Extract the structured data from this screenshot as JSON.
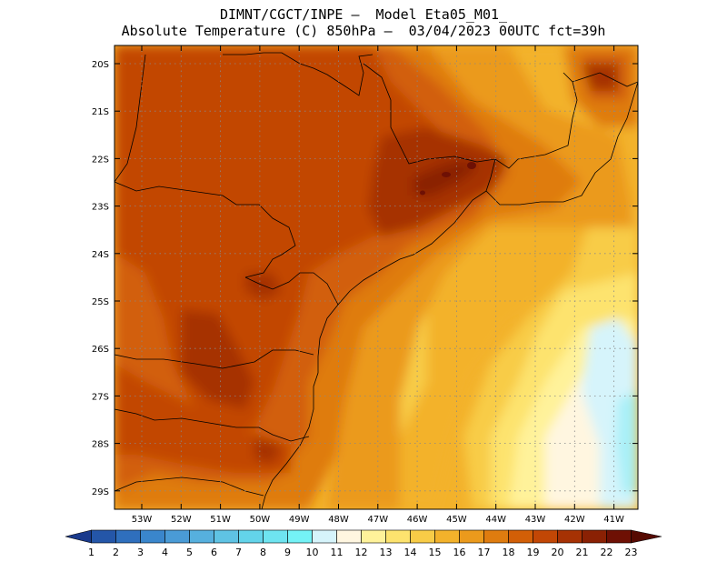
{
  "title_line1": "DIMNT/CGCT/INPE —  Model Eta05_M01_",
  "title_line2": "Absolute Temperature (C) 850hPa —  03/04/2023 00UTC fct=39h",
  "lat_labels": [
    "20S",
    "21S",
    "22S",
    "23S",
    "24S",
    "25S",
    "26S",
    "27S",
    "28S",
    "29S"
  ],
  "lon_labels": [
    "53W",
    "52W",
    "51W",
    "50W",
    "49W",
    "48W",
    "47W",
    "46W",
    "45W",
    "44W",
    "43W",
    "42W",
    "41W"
  ],
  "colorbar": {
    "labels": [
      "1",
      "2",
      "3",
      "4",
      "5",
      "6",
      "7",
      "8",
      "9",
      "10",
      "11",
      "12",
      "13",
      "14",
      "15",
      "16",
      "17",
      "18",
      "19",
      "20",
      "21",
      "22",
      "23"
    ],
    "colors": [
      "#1a3a8c",
      "#2456a8",
      "#2f6fbd",
      "#3a86cc",
      "#4a9bd6",
      "#56b0de",
      "#5fc3e4",
      "#63d4ea",
      "#6ee4f0",
      "#74f2f6",
      "#d6f4fb",
      "#fff6e0",
      "#fff29a",
      "#fde36e",
      "#f8cc47",
      "#f3b22b",
      "#eb9a1c",
      "#df7c0f",
      "#d25f07",
      "#c24705",
      "#a63204",
      "#8a2104",
      "#6e1004",
      "#560a02"
    ]
  },
  "colors": {
    "c18": "#df7c0f",
    "c19": "#d25f07",
    "c20": "#c24705",
    "c21": "#a63204",
    "c22": "#8a2104",
    "c23": "#6e1004",
    "c17": "#eb9a1c",
    "c16": "#f3b22b",
    "c15": "#f8cc47",
    "c14": "#fde36e",
    "c13": "#fff29a",
    "c12": "#fff6e0",
    "c11": "#d6f4fb",
    "c10": "#a8f0f8",
    "c9": "#74f2f6"
  }
}
